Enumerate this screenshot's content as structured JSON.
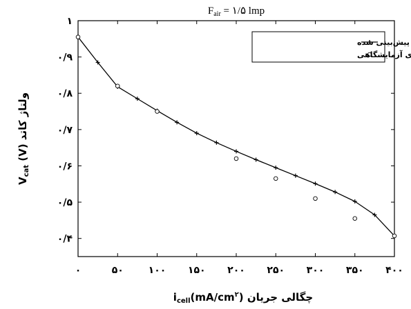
{
  "chart_data": {
    "type": "line",
    "title": "Fₐᵢᵣ = ۱/۵ lmp",
    "title_parts": {
      "main": "F",
      "sub": "air",
      "rest": " = ۱/۵ lmp"
    },
    "xlabel": "iₑₗₗ(mA/cm²) چگالی جریان",
    "xlabel_parts": {
      "main": "i",
      "sub": "cell",
      "rest": "(mA/cm",
      "sup": "۲",
      "tail": ") چگالی جریان"
    },
    "ylabel": "Vₑₐₜ (V) ولتاژ کاتد",
    "ylabel_parts": {
      "main": "V",
      "sub": "cat",
      "rest": " (V) ولتاژ کاتد"
    },
    "xlim": [
      0,
      400
    ],
    "ylim": [
      0.35,
      1.0
    ],
    "xticks": [
      0,
      50,
      100,
      150,
      200,
      250,
      300,
      350,
      400
    ],
    "xtick_labels": [
      "۰",
      "۵۰",
      "۱۰۰",
      "۱۵۰",
      "۲۰۰",
      "۲۵۰",
      "۳۰۰",
      "۳۵۰",
      "۴۰۰"
    ],
    "yticks": [
      0.4,
      0.5,
      0.6,
      0.7,
      0.8,
      0.9,
      1.0
    ],
    "ytick_labels": [
      "۰/۴",
      "۰/۵",
      "۰/۶",
      "۰/۷",
      "۰/۸",
      "۰/۹",
      "۱"
    ],
    "grid": false,
    "legend_position": "top-right",
    "series": [
      {
        "name": "مدل پیش‌بینی شده",
        "style": "line-plus",
        "color": "#000000",
        "x": [
          0,
          25,
          50,
          75,
          100,
          125,
          150,
          175,
          200,
          225,
          250,
          275,
          300,
          325,
          350,
          375,
          400
        ],
        "y": [
          0.955,
          0.885,
          0.818,
          0.785,
          0.752,
          0.72,
          0.69,
          0.664,
          0.64,
          0.617,
          0.595,
          0.573,
          0.551,
          0.528,
          0.502,
          0.465,
          0.407
        ]
      },
      {
        "name": "نتیجه‌های آزمایشگاهی",
        "style": "marker-circle",
        "color": "#000000",
        "x": [
          0,
          50,
          100,
          200,
          250,
          300,
          350,
          400
        ],
        "y": [
          0.955,
          0.82,
          0.75,
          0.62,
          0.565,
          0.51,
          0.455,
          0.407
        ]
      }
    ]
  }
}
